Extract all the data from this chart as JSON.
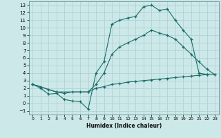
{
  "xlabel": "Humidex (Indice chaleur)",
  "bg_color": "#cce8e8",
  "grid_color": "#aacfcf",
  "line_color": "#1a6b6b",
  "xlim": [
    -0.5,
    23.5
  ],
  "ylim": [
    -1.5,
    13.5
  ],
  "series": [
    {
      "x": [
        0,
        1,
        2,
        3,
        4,
        5,
        6,
        7,
        8,
        9,
        10,
        11,
        12,
        13,
        14,
        15,
        16,
        17,
        18,
        19,
        20,
        21,
        22
      ],
      "y": [
        2.5,
        2.0,
        1.2,
        1.3,
        0.5,
        0.3,
        0.2,
        -0.8,
        4.0,
        5.5,
        10.5,
        11.0,
        11.3,
        11.5,
        12.8,
        13.0,
        12.3,
        12.5,
        11.0,
        9.7,
        8.5,
        4.0,
        3.8
      ]
    },
    {
      "x": [
        0,
        3,
        7,
        8,
        9,
        10,
        11,
        12,
        13,
        14,
        15,
        16,
        17,
        18,
        19,
        20,
        21,
        22,
        23
      ],
      "y": [
        2.5,
        1.5,
        1.5,
        2.5,
        4.0,
        6.5,
        7.5,
        8.0,
        8.5,
        9.0,
        9.7,
        9.3,
        9.0,
        8.5,
        7.5,
        6.5,
        5.5,
        4.5,
        3.8
      ]
    },
    {
      "x": [
        0,
        1,
        2,
        3,
        4,
        5,
        6,
        7,
        8,
        9,
        10,
        11,
        12,
        13,
        14,
        15,
        16,
        17,
        18,
        19,
        20,
        21,
        22,
        23
      ],
      "y": [
        2.5,
        2.2,
        1.8,
        1.5,
        1.3,
        1.5,
        1.5,
        1.5,
        2.0,
        2.2,
        2.5,
        2.6,
        2.8,
        2.9,
        3.0,
        3.1,
        3.2,
        3.3,
        3.4,
        3.5,
        3.6,
        3.7,
        3.8,
        3.8
      ]
    }
  ]
}
